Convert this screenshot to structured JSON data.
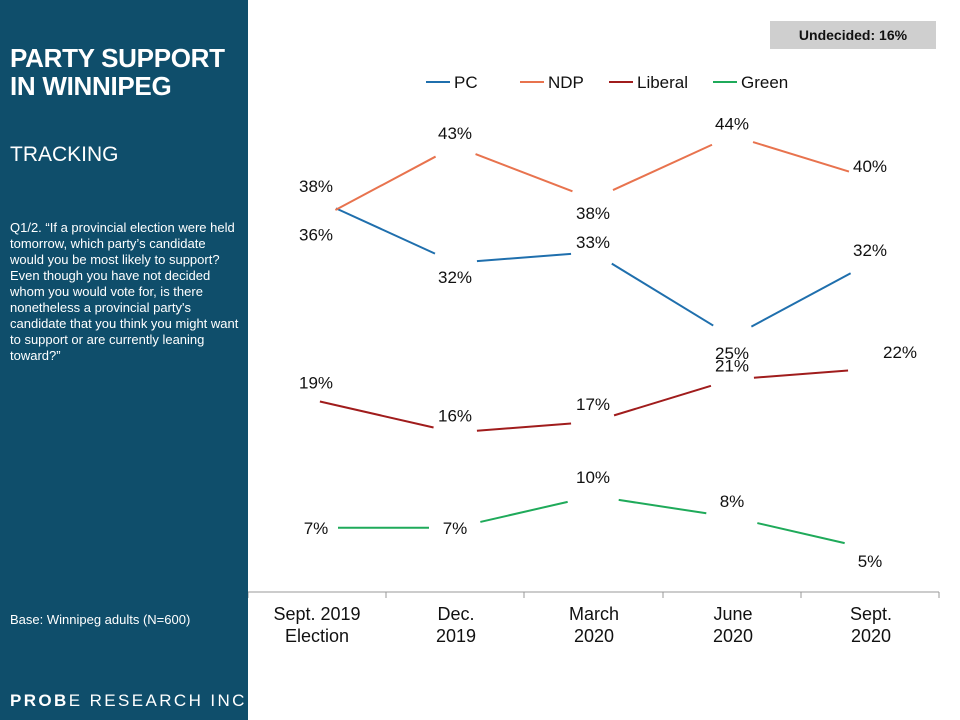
{
  "sidebar": {
    "title": "PARTY SUPPORT IN WINNIPEG",
    "subtitle": "TRACKING",
    "question": "Q1/2. “If a provincial election were held tomorrow, which party’s candidate would you be most likely to support? Even though you have not decided whom you would vote for, is there nonetheless a provincial party's candidate that you think you might want to support or are currently leaning toward?”",
    "base": "Base: Winnipeg adults (N=600)",
    "brand_pre": "PR",
    "brand_bold": "O",
    "brand_mid": "B",
    "brand_post": "E RESEARCH INC."
  },
  "undecided": "Undecided: 16%",
  "chart_data": {
    "type": "line",
    "categories": [
      [
        "Sept. 2019",
        "Election"
      ],
      [
        "Dec.",
        "2019"
      ],
      [
        "March",
        "2020"
      ],
      [
        "June",
        "2020"
      ],
      [
        "Sept.",
        "2020"
      ]
    ],
    "series": [
      {
        "name": "PC",
        "color": "#1f6fad",
        "values": [
          38,
          32,
          33,
          25,
          32
        ],
        "labels": [
          "38%",
          "32%",
          "33%",
          "25%",
          "32%"
        ]
      },
      {
        "name": "NDP",
        "color": "#e8734e",
        "values": [
          36,
          43,
          38,
          44,
          40
        ],
        "labels": [
          "36%",
          "43%",
          "38%",
          "44%",
          "40%"
        ]
      },
      {
        "name": "Liberal",
        "color": "#a01c1c",
        "values": [
          19,
          16,
          17,
          21,
          22
        ],
        "labels": [
          "19%",
          "16%",
          "17%",
          "21%",
          "22%"
        ]
      },
      {
        "name": "Green",
        "color": "#1faa5a",
        "values": [
          7,
          7,
          10,
          8,
          5
        ],
        "labels": [
          "7%",
          "7%",
          "10%",
          "8%",
          "5%"
        ]
      }
    ],
    "ylim": [
      0,
      50
    ],
    "grid": false,
    "legend": "top"
  }
}
